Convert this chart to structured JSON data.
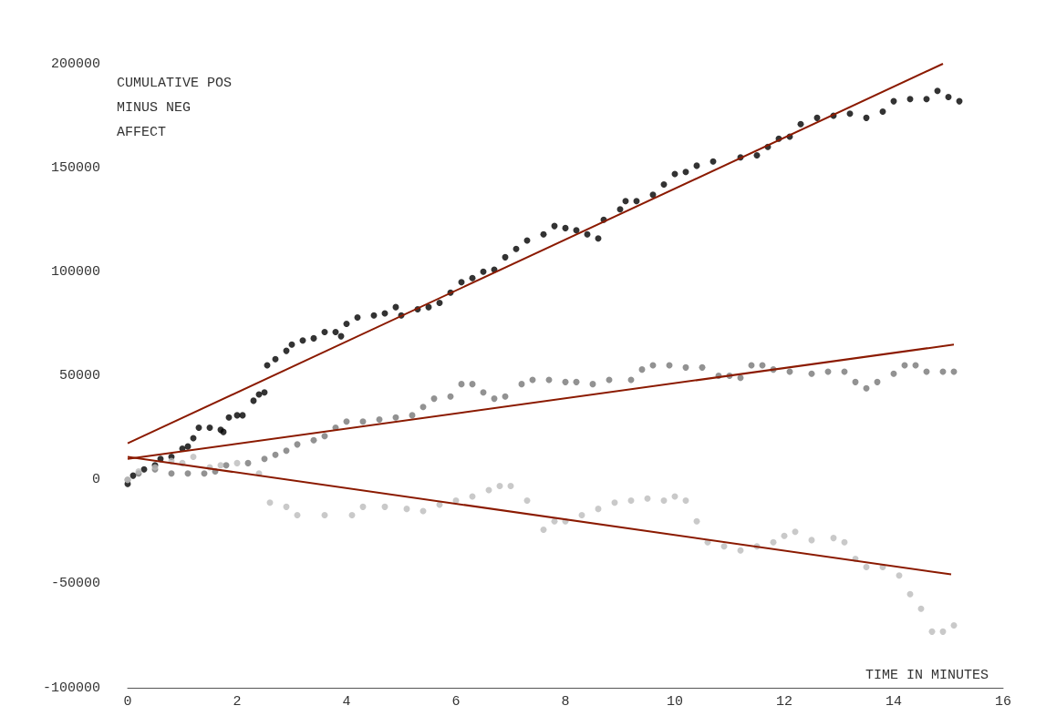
{
  "chart_data": {
    "type": "scatter",
    "xlabel": "TIME IN MINUTES",
    "ylabel": "CUMULATIVE POS MINUS NEG AFFECT",
    "xlim": [
      0,
      16
    ],
    "xticks": [
      0,
      2,
      4,
      6,
      8,
      10,
      12,
      14,
      16
    ],
    "ylim": [
      -100000,
      200000
    ],
    "yticks": [
      -100000,
      -50000,
      0,
      50000,
      100000,
      150000,
      200000
    ],
    "marker": "circle",
    "series": [
      {
        "color": "#000000",
        "x": [
          0,
          0.1,
          0.3,
          0.5,
          0.6,
          0.8,
          1.0,
          1.1,
          1.2,
          1.3,
          1.5,
          1.7,
          1.75,
          1.85,
          2.0,
          2.1,
          2.3,
          2.4,
          2.5,
          2.55,
          2.7,
          2.9,
          3.0,
          3.2,
          3.4,
          3.6,
          3.8,
          3.9,
          4.0,
          4.2,
          4.5,
          4.7,
          4.9,
          5.0,
          5.3,
          5.5,
          5.7,
          5.9,
          6.1,
          6.3,
          6.5,
          6.7,
          6.9,
          7.1,
          7.3,
          7.6,
          7.8,
          8.0,
          8.2,
          8.4,
          8.6,
          8.7,
          9.0,
          9.1,
          9.3,
          9.6,
          9.8,
          10.0,
          10.2,
          10.4,
          10.7,
          11.2,
          11.5,
          11.7,
          11.9,
          12.1,
          12.3,
          12.6,
          12.9,
          13.2,
          13.5,
          13.8,
          14.0,
          14.3,
          14.6,
          14.8,
          15.0,
          15.2
        ],
        "values": [
          -2000,
          2000,
          5000,
          7000,
          10000,
          11000,
          15000,
          16000,
          20000,
          25000,
          25000,
          24000,
          23000,
          30000,
          31000,
          31000,
          38000,
          41000,
          42000,
          55000,
          58000,
          62000,
          65000,
          67000,
          68000,
          71000,
          71000,
          69000,
          75000,
          78000,
          79000,
          80000,
          83000,
          79000,
          82000,
          83000,
          85000,
          90000,
          95000,
          97000,
          100000,
          101000,
          107000,
          111000,
          115000,
          118000,
          122000,
          121000,
          120000,
          118000,
          116000,
          125000,
          130000,
          134000,
          134000,
          137000,
          142000,
          147000,
          148000,
          151000,
          153000,
          155000,
          156000,
          160000,
          164000,
          165000,
          171000,
          174000,
          175000,
          176000,
          174000,
          177000,
          182000,
          183000,
          183000,
          187000,
          184000,
          182000
        ]
      },
      {
        "color": "#777777",
        "x": [
          0,
          0.2,
          0.5,
          0.8,
          1.1,
          1.4,
          1.6,
          1.8,
          2.2,
          2.5,
          2.7,
          2.9,
          3.1,
          3.4,
          3.6,
          3.8,
          4.0,
          4.3,
          4.6,
          4.9,
          5.2,
          5.4,
          5.6,
          5.9,
          6.1,
          6.3,
          6.5,
          6.7,
          6.9,
          7.2,
          7.4,
          7.7,
          8.0,
          8.2,
          8.5,
          8.8,
          9.2,
          9.4,
          9.6,
          9.9,
          10.2,
          10.5,
          10.8,
          11.0,
          11.2,
          11.4,
          11.6,
          11.8,
          12.1,
          12.5,
          12.8,
          13.1,
          13.3,
          13.5,
          13.7,
          14.0,
          14.2,
          14.4,
          14.6,
          14.9,
          15.1
        ],
        "values": [
          0,
          3000,
          5000,
          3000,
          3000,
          3000,
          4000,
          7000,
          8000,
          10000,
          12000,
          14000,
          17000,
          19000,
          21000,
          25000,
          28000,
          28000,
          29000,
          30000,
          31000,
          35000,
          39000,
          40000,
          46000,
          46000,
          42000,
          39000,
          40000,
          46000,
          48000,
          48000,
          47000,
          47000,
          46000,
          48000,
          48000,
          53000,
          55000,
          55000,
          54000,
          54000,
          50000,
          50000,
          49000,
          55000,
          55000,
          53000,
          52000,
          51000,
          52000,
          52000,
          47000,
          44000,
          47000,
          51000,
          55000,
          55000,
          52000,
          52000,
          52000
        ]
      },
      {
        "color": "#bbbbbb",
        "x": [
          0,
          0.2,
          0.5,
          0.8,
          1.0,
          1.2,
          1.5,
          1.7,
          2.0,
          2.4,
          2.6,
          2.9,
          3.1,
          3.6,
          4.1,
          4.3,
          4.7,
          5.1,
          5.4,
          5.7,
          6.0,
          6.3,
          6.6,
          6.8,
          7.0,
          7.3,
          7.6,
          7.8,
          8.0,
          8.3,
          8.6,
          8.9,
          9.2,
          9.5,
          9.8,
          10.0,
          10.2,
          10.4,
          10.6,
          10.9,
          11.2,
          11.5,
          11.8,
          12.0,
          12.2,
          12.5,
          12.9,
          13.1,
          13.3,
          13.5,
          13.8,
          14.1,
          14.3,
          14.5,
          14.7,
          14.9,
          15.1
        ],
        "values": [
          0,
          4000,
          6000,
          9000,
          8000,
          11000,
          6000,
          7000,
          8000,
          3000,
          -11000,
          -13000,
          -17000,
          -17000,
          -17000,
          -13000,
          -13000,
          -14000,
          -15000,
          -12000,
          -10000,
          -8000,
          -5000,
          -3000,
          -3000,
          -10000,
          -24000,
          -20000,
          -20000,
          -17000,
          -14000,
          -11000,
          -10000,
          -9000,
          -10000,
          -8000,
          -10000,
          -20000,
          -30000,
          -32000,
          -34000,
          -32000,
          -30000,
          -27000,
          -25000,
          -29000,
          -28000,
          -30000,
          -38000,
          -42000,
          -42000,
          -46000,
          -55000,
          -62000,
          -73000,
          -73000,
          -70000
        ]
      },
      {
        "type": "line",
        "marker": "none",
        "color": "#8b1a00",
        "x": [
          0,
          14.9
        ],
        "values": [
          17500,
          200000
        ]
      },
      {
        "type": "line",
        "marker": "none",
        "color": "#8b1a00",
        "x": [
          0,
          15.1
        ],
        "values": [
          10000,
          65000
        ]
      },
      {
        "type": "line",
        "marker": "none",
        "color": "#8b1a00",
        "x": [
          0,
          15.05
        ],
        "values": [
          11000,
          -45500
        ]
      }
    ]
  }
}
